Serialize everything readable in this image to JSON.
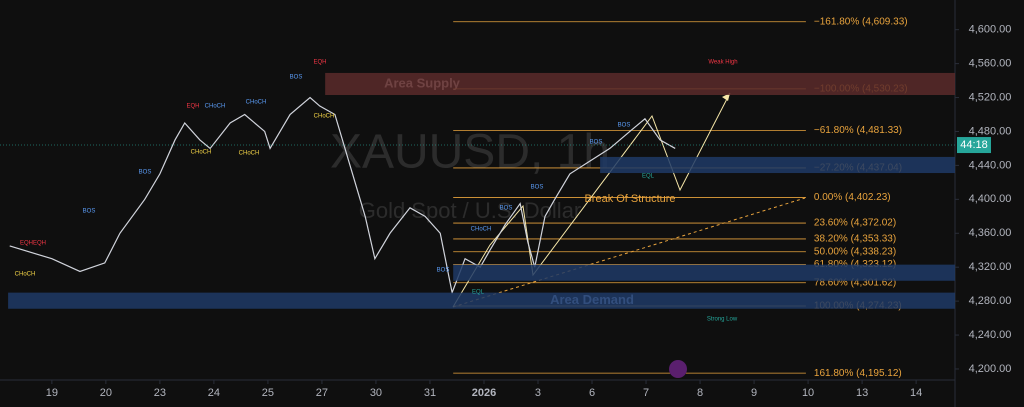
{
  "chart_data": {
    "type": "line",
    "title": "XAUUSD, 1h",
    "subtitle": "Gold Spot / U.S. Dollar",
    "xlim": [
      -0.96,
      16.72
    ],
    "ylim": [
      4187,
      4635
    ],
    "xticks": [
      {
        "value": 0,
        "label": "19"
      },
      {
        "value": 1,
        "label": "20"
      },
      {
        "value": 2,
        "label": "23"
      },
      {
        "value": 3,
        "label": "24"
      },
      {
        "value": 4,
        "label": "25"
      },
      {
        "value": 5,
        "label": "27"
      },
      {
        "value": 6,
        "label": "30"
      },
      {
        "value": 7,
        "label": "31"
      },
      {
        "value": 8,
        "label": "2026"
      },
      {
        "value": 9,
        "label": "3"
      },
      {
        "value": 10,
        "label": "6"
      },
      {
        "value": 11,
        "label": "7"
      },
      {
        "value": 12,
        "label": "8"
      },
      {
        "value": 13,
        "label": "9"
      },
      {
        "value": 14,
        "label": "10"
      },
      {
        "value": 15,
        "label": "13"
      },
      {
        "value": 16,
        "label": "14"
      }
    ],
    "yticks": [
      {
        "value": 4200,
        "label": "4,200.00"
      },
      {
        "value": 4240,
        "label": "4,240.00"
      },
      {
        "value": 4280,
        "label": "4,280.00"
      },
      {
        "value": 4320,
        "label": "4,320.00"
      },
      {
        "value": 4360,
        "label": "4,360.00"
      },
      {
        "value": 4400,
        "label": "4,400.00"
      },
      {
        "value": 4440,
        "label": "4,440.00"
      },
      {
        "value": 4480,
        "label": "4,480.00"
      },
      {
        "value": 4520,
        "label": "4,520.00"
      },
      {
        "value": 4560,
        "label": "4,560.00"
      },
      {
        "value": 4600,
        "label": "4,600.00"
      }
    ],
    "series": [
      {
        "name": "XAUUSD",
        "color": "#d1d4dc",
        "x": [
          -0.78,
          0,
          0.52,
          0.98,
          1.26,
          1.72,
          2,
          2.28,
          2.46,
          2.74,
          2.93,
          3.3,
          3.57,
          3.94,
          4.04,
          4.41,
          4.78,
          4.96,
          5.24,
          5.52,
          5.8,
          5.98,
          6.26,
          6.63,
          6.91,
          7.19,
          7.41,
          7.65,
          7.93,
          8.11,
          8.39,
          8.67,
          8.81,
          8.94,
          9.13,
          9.31,
          9.59,
          9.96,
          10.33,
          10.7,
          10.98,
          11.26,
          11.54
        ],
        "values": [
          4345,
          4330,
          4315,
          4325,
          4360,
          4400,
          4430,
          4470,
          4490,
          4470,
          4460,
          4490,
          4500,
          4480,
          4460,
          4500,
          4520,
          4510,
          4500,
          4440,
          4380,
          4330,
          4360,
          4390,
          4380,
          4360,
          4290,
          4330,
          4320,
          4340,
          4370,
          4395,
          4350,
          4320,
          4380,
          4400,
          4430,
          4445,
          4460,
          4480,
          4495,
          4470,
          4460
        ]
      }
    ],
    "last_price": 4464,
    "countdown": "44:18",
    "fib_start": 7.43,
    "fib_end": 13.96,
    "fib_levels": [
      {
        "label": "−161.80% (4,609.33)",
        "value": 4609.33
      },
      {
        "label": "−100.00% (4,530.23)",
        "value": 4530.23
      },
      {
        "label": "−61.80% (4,481.33)",
        "value": 4481.33
      },
      {
        "label": "−27.20% (4,437.04)",
        "value": 4437.04
      },
      {
        "label": "0.00% (4,402.23)",
        "value": 4402.23
      },
      {
        "label": "23.60% (4,372.02)",
        "value": 4372.02
      },
      {
        "label": "38.20% (4,353.33)",
        "value": 4353.33
      },
      {
        "label": "50.00% (4,338.23)",
        "value": 4338.23
      },
      {
        "label": "61.80% (4,323.12)",
        "value": 4323.12
      },
      {
        "label": "78.60% (4,301.62)",
        "value": 4301.62
      },
      {
        "label": "100.00% (4,274.23)",
        "value": 4274.23
      },
      {
        "label": "161.80% (4,195.12)",
        "value": 4195.12
      }
    ],
    "zones": [
      {
        "name": "Area Supply",
        "start": 5.06,
        "top": 4549,
        "bottom": 4523,
        "color": "#5a2a2a"
      },
      {
        "name": "Area Demand",
        "start": -0.81,
        "top": 4290,
        "bottom": 4271,
        "color": "#1f3a66"
      },
      {
        "start": 10.15,
        "top": 4450,
        "bottom": 4431,
        "color": "#1f3a66"
      },
      {
        "start": 7.43,
        "top": 4323,
        "bottom": 4304,
        "color": "#1f3a66"
      }
    ],
    "annotations": [
      "EQH",
      "Weak High",
      "BOS",
      "CHoCH",
      "CHoCH",
      "EQH",
      "CHoCH",
      "CHoCH",
      "BOS",
      "BOS",
      "CHoCH",
      "EQHEQH",
      "CHoCH",
      "BOS",
      "CHoCH",
      "BOS",
      "BOS",
      "BOS",
      "EQL",
      "EQL",
      "Strong Low",
      "Break Of Structure",
      "BOS"
    ]
  }
}
